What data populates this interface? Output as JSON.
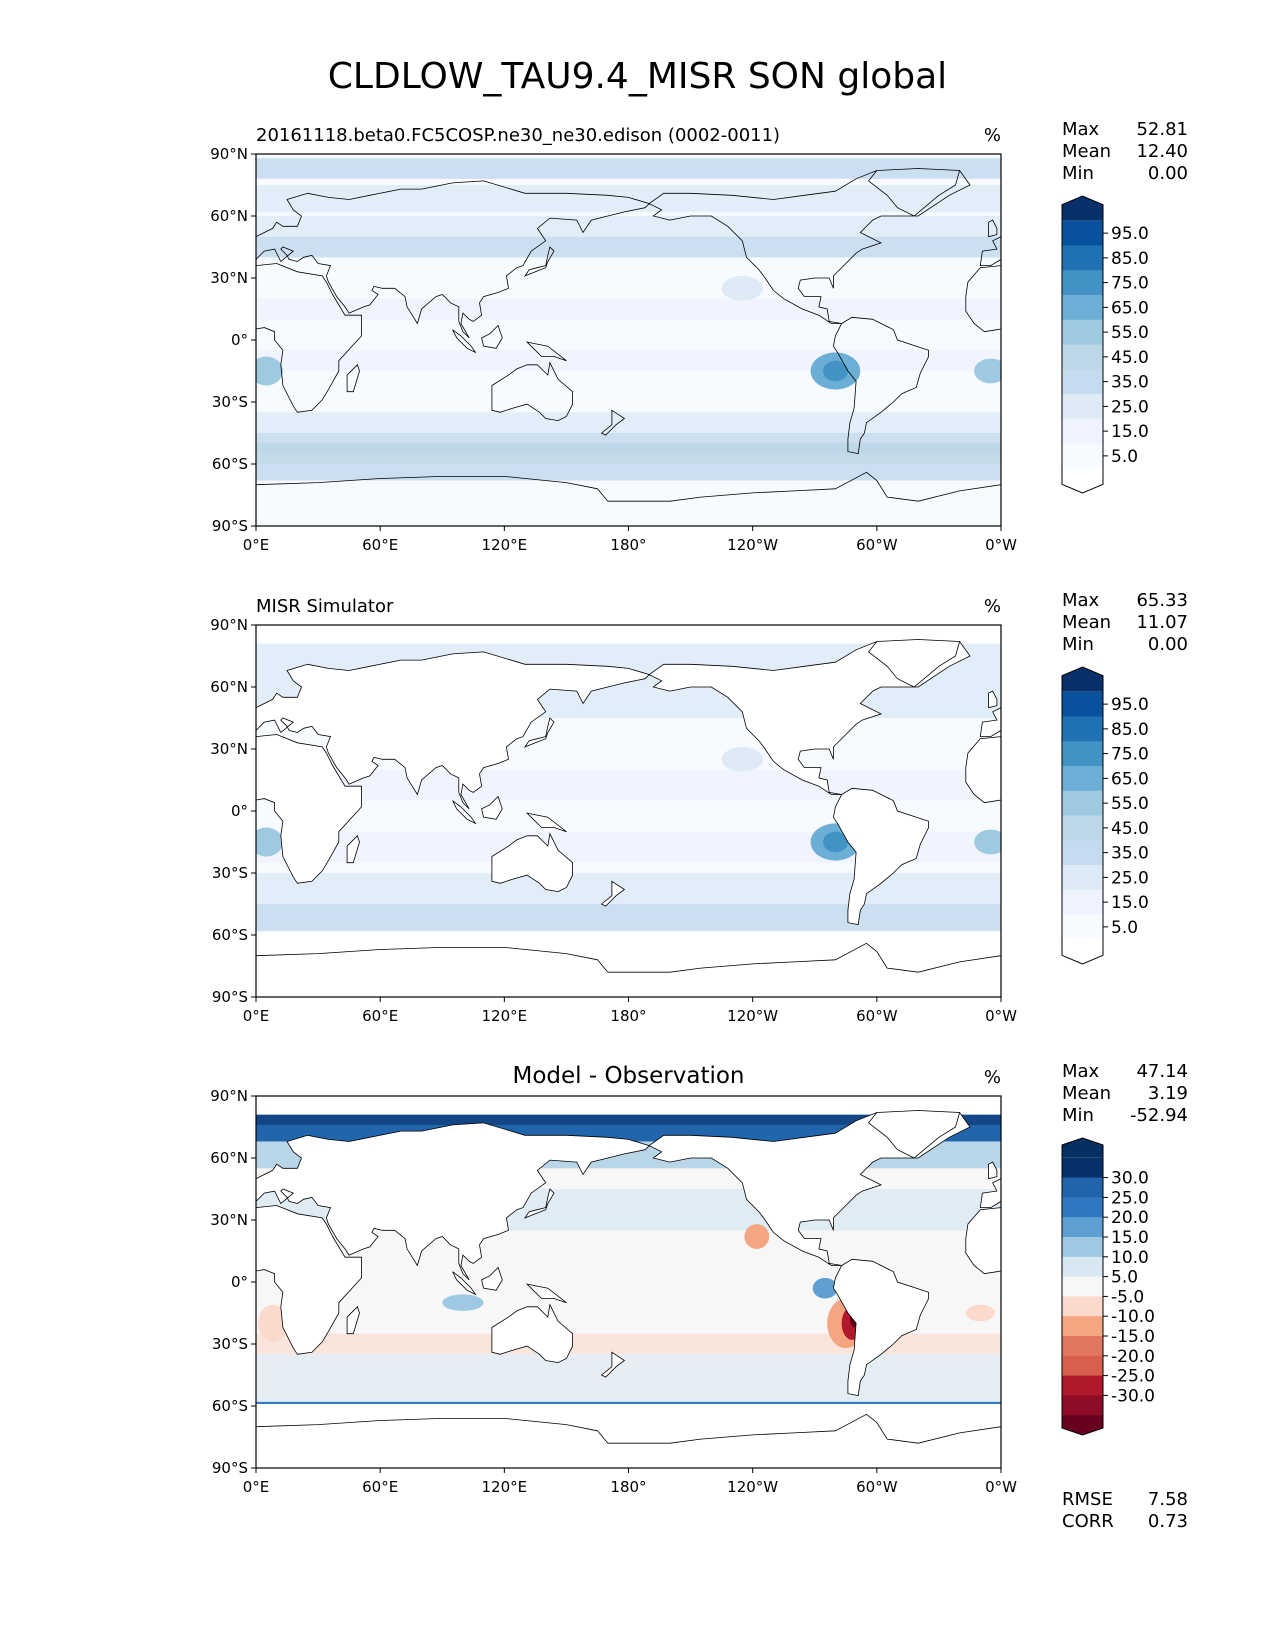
{
  "figure": {
    "title": "CLDLOW_TAU9.4_MISR SON global"
  },
  "panels": [
    {
      "id": "test",
      "title_left": "20161118.beta0.FC5COSP.ne30_ne30.edison (0002-0011)",
      "title_center": "",
      "units": "%",
      "stats": [
        {
          "label": "Max",
          "value": "52.81"
        },
        {
          "label": "Mean",
          "value": "12.40"
        },
        {
          "label": "Min",
          "value": "0.00"
        }
      ],
      "extra_stats": [],
      "colormap": "Blues",
      "colorbar_labels": [
        "95.0",
        "85.0",
        "75.0",
        "65.0",
        "55.0",
        "45.0",
        "35.0",
        "25.0",
        "15.0",
        "5.0"
      ],
      "colorbar_colors": [
        "#08306b",
        "#08519c",
        "#2171b5",
        "#4292c6",
        "#6baed6",
        "#9ecae1",
        "#bdd7e7",
        "#c6dbef",
        "#deebf7",
        "#eff3ff",
        "#f7fbff",
        "#ffffff"
      ]
    },
    {
      "id": "reference",
      "title_left": "MISR Simulator",
      "title_center": "",
      "units": "%",
      "stats": [
        {
          "label": "Max",
          "value": "65.33"
        },
        {
          "label": "Mean",
          "value": "11.07"
        },
        {
          "label": "Min",
          "value": "0.00"
        }
      ],
      "extra_stats": [],
      "colormap": "Blues",
      "colorbar_labels": [
        "95.0",
        "85.0",
        "75.0",
        "65.0",
        "55.0",
        "45.0",
        "35.0",
        "25.0",
        "15.0",
        "5.0"
      ],
      "colorbar_colors": [
        "#08306b",
        "#08519c",
        "#2171b5",
        "#4292c6",
        "#6baed6",
        "#9ecae1",
        "#bdd7e7",
        "#c6dbef",
        "#deebf7",
        "#eff3ff",
        "#f7fbff",
        "#ffffff"
      ]
    },
    {
      "id": "diff",
      "title_left": "",
      "title_center": "Model - Observation",
      "units": "%",
      "stats": [
        {
          "label": "Max",
          "value": "47.14"
        },
        {
          "label": "Mean",
          "value": "3.19"
        },
        {
          "label": "Min",
          "value": "-52.94"
        }
      ],
      "extra_stats": [
        {
          "label": "RMSE",
          "value": "7.58"
        },
        {
          "label": "CORR",
          "value": "0.73"
        }
      ],
      "colormap": "RdBu",
      "colorbar_labels": [
        "30.0",
        "25.0",
        "20.0",
        "15.0",
        "10.0",
        "5.0",
        "-5.0",
        "-10.0",
        "-15.0",
        "-20.0",
        "-25.0",
        "-30.0"
      ],
      "colorbar_colors": [
        "#053061",
        "#08306b",
        "#2166ac",
        "#2f78c2",
        "#5fa0d3",
        "#9ec8e3",
        "#d8e8f3",
        "#f7f7f7",
        "#fbd9cc",
        "#f4a582",
        "#e2765e",
        "#d6604d",
        "#b2182b",
        "#8c0d25",
        "#67001f"
      ]
    }
  ],
  "axes": {
    "x_ticks": [
      "0°E",
      "60°E",
      "120°E",
      "180°",
      "120°W",
      "60°W",
      "0°W"
    ],
    "y_ticks": [
      "90°N",
      "60°N",
      "30°N",
      "0°",
      "30°S",
      "60°S",
      "90°S"
    ]
  }
}
